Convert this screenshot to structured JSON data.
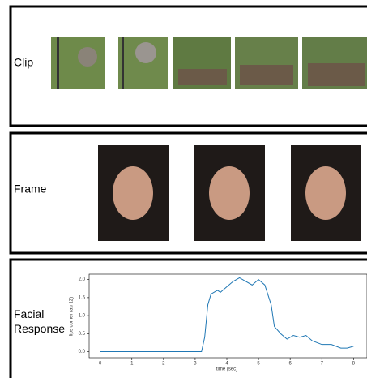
{
  "panels": [
    {
      "label": "Clip"
    },
    {
      "label": "Frame"
    },
    {
      "label": "Facial Response"
    }
  ],
  "chart_data": {
    "type": "line",
    "x_label": "time (sec)",
    "y_label": "lips corner (au 12)",
    "x": [
      0,
      0.5,
      1,
      1.5,
      2,
      2.5,
      3,
      3.2,
      3.3,
      3.4,
      3.5,
      3.7,
      3.8,
      4.0,
      4.2,
      4.4,
      4.6,
      4.8,
      5.0,
      5.2,
      5.4,
      5.5,
      5.7,
      5.9,
      6.1,
      6.3,
      6.5,
      6.7,
      7.0,
      7.3,
      7.6,
      7.8,
      8.0
    ],
    "series": [
      {
        "color": "#1f77b4",
        "values": [
          0.0,
          0.0,
          0.0,
          0.0,
          0.0,
          0.0,
          0.0,
          0.0,
          0.4,
          1.3,
          1.6,
          1.7,
          1.65,
          1.8,
          1.95,
          2.05,
          1.95,
          1.85,
          2.0,
          1.85,
          1.3,
          0.7,
          0.5,
          0.35,
          0.45,
          0.4,
          0.45,
          0.3,
          0.2,
          0.2,
          0.1,
          0.1,
          0.15
        ]
      }
    ],
    "xlim": [
      -0.35,
      8.35
    ],
    "ylim": [
      -0.1,
      2.15
    ],
    "xticks": [
      0,
      1,
      2,
      3,
      4,
      5,
      6,
      7,
      8
    ],
    "yticks": [
      {
        "value": 0,
        "label": "0.0"
      },
      {
        "value": 0.5,
        "label": "0.5"
      },
      {
        "value": 1,
        "label": "1.0"
      },
      {
        "value": 1.5,
        "label": "1.5"
      },
      {
        "value": 2,
        "label": "2.0"
      }
    ]
  }
}
